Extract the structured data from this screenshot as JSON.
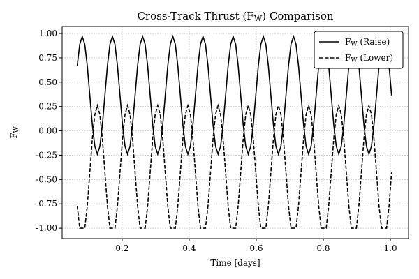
{
  "chart_data": {
    "type": "line",
    "title": "Cross-Track Thrust (F_W) Comparison",
    "xlabel": "Time [days]",
    "ylabel": "F_W",
    "xlim": [
      0.021,
      1.054
    ],
    "ylim": [
      -1.107,
      1.072
    ],
    "xticks": [
      0.2,
      0.4,
      0.6,
      0.8,
      {
        "value": 1.0,
        "label": "1.0"
      }
    ],
    "yticks": [
      {
        "value": 1.0,
        "label": "1.00"
      },
      0.75,
      {
        "value": 0.5,
        "label": "0.50"
      },
      0.25,
      {
        "value": 0,
        "label": "0.00"
      },
      -0.25,
      {
        "value": -0.5,
        "label": "-0.50"
      },
      -0.75,
      {
        "value": -1.0,
        "label": "-1.00"
      }
    ],
    "grid": true,
    "legend": "upper right",
    "x": [
      0.066,
      0.0735,
      0.081,
      0.0885,
      0.096,
      0.1035,
      0.111,
      0.1185,
      0.126,
      0.1335,
      0.141,
      0.1485,
      0.156,
      0.1635,
      0.171,
      0.1785,
      0.186,
      0.1935,
      0.201,
      0.2085,
      0.216,
      0.2235,
      0.231,
      0.2385,
      0.246,
      0.2535,
      0.261,
      0.2685,
      0.276,
      0.2835,
      0.291,
      0.2985,
      0.306,
      0.3135,
      0.321,
      0.3285,
      0.336,
      0.3435,
      0.351,
      0.3585,
      0.366,
      0.3735,
      0.381,
      0.3885,
      0.396,
      0.4035,
      0.411,
      0.4185,
      0.426,
      0.4335,
      0.441,
      0.4485,
      0.456,
      0.4635,
      0.471,
      0.4785,
      0.486,
      0.4935,
      0.501,
      0.5085,
      0.516,
      0.5235,
      0.531,
      0.5385,
      0.546,
      0.5535,
      0.561,
      0.5685,
      0.576,
      0.5835,
      0.591,
      0.5985,
      0.606,
      0.6135,
      0.621,
      0.6285,
      0.636,
      0.6435,
      0.651,
      0.6585,
      0.666,
      0.6735,
      0.681,
      0.6885,
      0.696,
      0.7035,
      0.711,
      0.7185,
      0.726,
      0.7335,
      0.741,
      0.7485,
      0.756,
      0.7635,
      0.771,
      0.7785,
      0.786,
      0.7935,
      0.801,
      0.8085,
      0.816,
      0.8235,
      0.831,
      0.8385,
      0.846,
      0.8535,
      0.861,
      0.8685,
      0.876,
      0.8835,
      0.891,
      0.8985,
      0.906,
      0.9135,
      0.921,
      0.9285,
      0.936,
      0.9435,
      0.951,
      0.9585,
      0.966,
      0.9735,
      0.981,
      0.9885,
      0.996,
      1.0035
    ],
    "series": [
      {
        "name": "F_W (Raise)",
        "color": "#000000",
        "linestyle": "solid",
        "values": [
          0.668,
          0.889,
          0.97,
          0.889,
          0.668,
          0.365,
          0.063,
          -0.159,
          -0.24,
          -0.159,
          0.063,
          0.365,
          0.668,
          0.889,
          0.97,
          0.889,
          0.668,
          0.365,
          0.063,
          -0.159,
          -0.24,
          -0.159,
          0.063,
          0.365,
          0.668,
          0.889,
          0.97,
          0.889,
          0.668,
          0.365,
          0.063,
          -0.159,
          -0.24,
          -0.159,
          0.063,
          0.365,
          0.668,
          0.889,
          0.97,
          0.889,
          0.668,
          0.365,
          0.063,
          -0.159,
          -0.24,
          -0.159,
          0.063,
          0.365,
          0.668,
          0.889,
          0.97,
          0.889,
          0.668,
          0.365,
          0.063,
          -0.159,
          -0.24,
          -0.159,
          0.063,
          0.365,
          0.668,
          0.889,
          0.97,
          0.889,
          0.668,
          0.365,
          0.063,
          -0.159,
          -0.24,
          -0.159,
          0.063,
          0.365,
          0.668,
          0.889,
          0.97,
          0.889,
          0.668,
          0.365,
          0.063,
          -0.159,
          -0.24,
          -0.159,
          0.063,
          0.365,
          0.668,
          0.889,
          0.97,
          0.889,
          0.668,
          0.365,
          0.063,
          -0.159,
          -0.24,
          -0.159,
          0.063,
          0.365,
          0.668,
          0.889,
          0.97,
          0.889,
          0.668,
          0.365,
          0.063,
          -0.159,
          -0.24,
          -0.159,
          0.063,
          0.365,
          0.668,
          0.889,
          0.97,
          0.889,
          0.668,
          0.365,
          0.063,
          -0.159,
          -0.24,
          -0.159,
          0.063,
          0.365,
          0.668,
          0.889,
          0.97,
          0.889,
          0.668,
          0.365
        ]
      },
      {
        "name": "F_W (Lower)",
        "color": "#000000",
        "linestyle": "dashed",
        "values": [
          -0.771,
          -1,
          -1,
          -1,
          -0.771,
          -0.427,
          -0.084,
          0.168,
          0.26,
          0.168,
          -0.084,
          -0.427,
          -0.771,
          -1,
          -1,
          -1,
          -0.771,
          -0.427,
          -0.084,
          0.168,
          0.26,
          0.168,
          -0.084,
          -0.427,
          -0.771,
          -1,
          -1,
          -1,
          -0.771,
          -0.427,
          -0.084,
          0.168,
          0.26,
          0.168,
          -0.084,
          -0.427,
          -0.771,
          -1,
          -1,
          -1,
          -0.771,
          -0.427,
          -0.084,
          0.168,
          0.26,
          0.168,
          -0.084,
          -0.427,
          -0.771,
          -1,
          -1,
          -1,
          -0.771,
          -0.427,
          -0.084,
          0.168,
          0.26,
          0.168,
          -0.084,
          -0.427,
          -0.771,
          -1,
          -1,
          -1,
          -0.771,
          -0.427,
          -0.084,
          0.168,
          0.26,
          0.168,
          -0.084,
          -0.427,
          -0.771,
          -1,
          -1,
          -1,
          -0.771,
          -0.427,
          -0.084,
          0.168,
          0.26,
          0.168,
          -0.084,
          -0.427,
          -0.771,
          -1,
          -1,
          -1,
          -0.771,
          -0.427,
          -0.084,
          0.168,
          0.26,
          0.168,
          -0.084,
          -0.427,
          -0.771,
          -1,
          -1,
          -1,
          -0.771,
          -0.427,
          -0.084,
          0.168,
          0.26,
          0.168,
          -0.084,
          -0.427,
          -0.771,
          -1,
          -1,
          -1,
          -0.771,
          -0.427,
          -0.084,
          0.168,
          0.26,
          0.168,
          -0.084,
          -0.427,
          -0.771,
          -1,
          -1,
          -1,
          -0.771,
          -0.427
        ]
      }
    ]
  }
}
